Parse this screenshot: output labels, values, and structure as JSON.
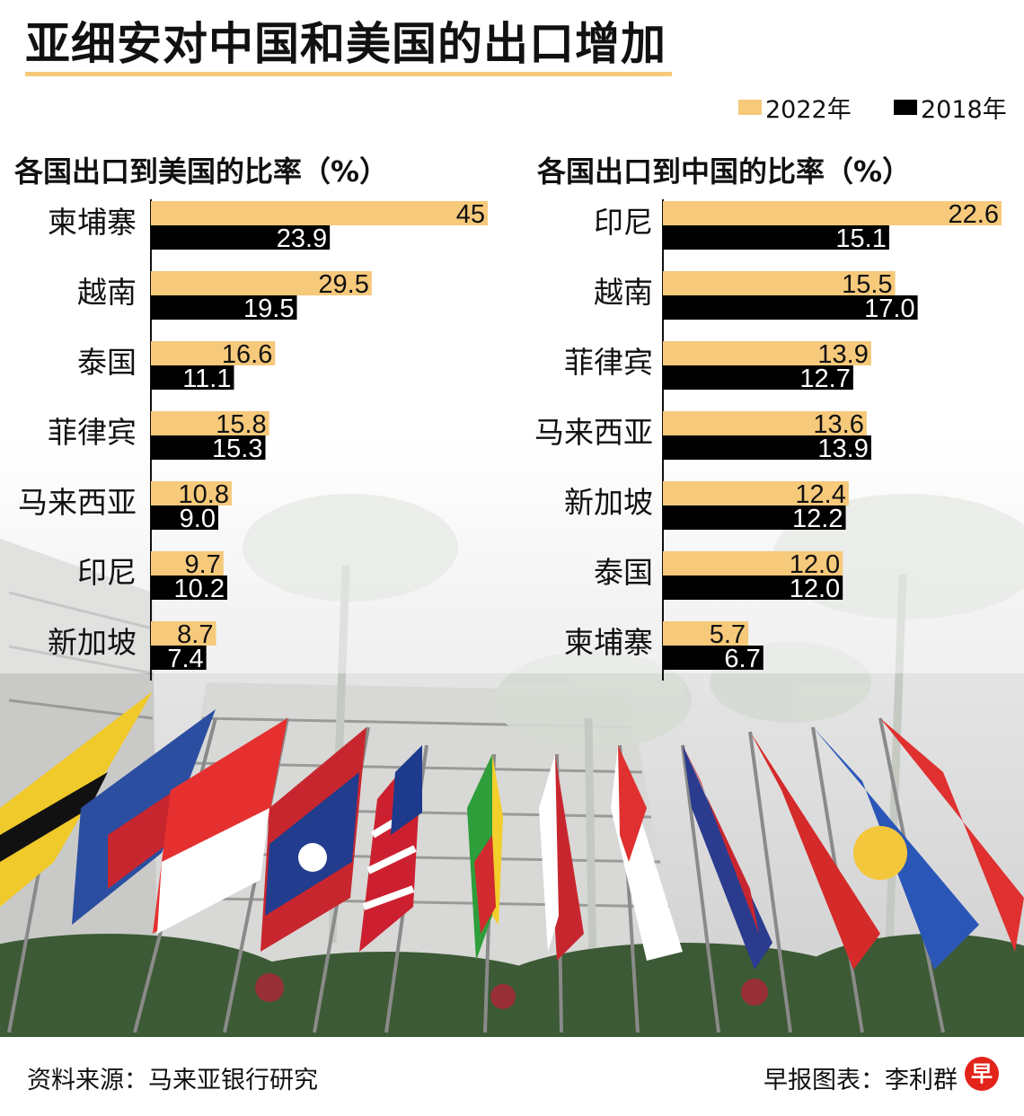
{
  "title": "亚细安对中国和美国的出口增加",
  "colors": {
    "y2022": "#f6c97b",
    "y2018": "#000000",
    "badge": "#e2231a"
  },
  "legend": [
    {
      "label": "2022年",
      "color": "#f6c97b"
    },
    {
      "label": "2018年",
      "color": "#000000"
    }
  ],
  "footer": {
    "source": "资料来源：马来亚银行研究",
    "credit": "早报图表：李利群",
    "badge_text": "早"
  },
  "chart_data": [
    {
      "type": "bar",
      "title": "各国出口到美国的比率（%）",
      "orientation": "horizontal",
      "categories": [
        "柬埔寨",
        "越南",
        "泰国",
        "菲律宾",
        "马来西亚",
        "印尼",
        "新加坡"
      ],
      "series": [
        {
          "name": "2022年",
          "values": [
            45,
            29.5,
            16.6,
            15.8,
            10.8,
            9.7,
            8.7
          ],
          "labels": [
            "45",
            "29.5",
            "16.6",
            "15.8",
            "10.8",
            "9.7",
            "8.7"
          ]
        },
        {
          "name": "2018年",
          "values": [
            23.9,
            19.5,
            11.1,
            15.3,
            9.0,
            10.2,
            7.4
          ],
          "labels": [
            "23.9",
            "19.5",
            "11.1",
            "15.3",
            "9.0",
            "10.2",
            "7.4"
          ]
        }
      ],
      "xlim": [
        0,
        45
      ]
    },
    {
      "type": "bar",
      "title": "各国出口到中国的比率（%）",
      "orientation": "horizontal",
      "categories": [
        "印尼",
        "越南",
        "菲律宾",
        "马来西亚",
        "新加坡",
        "泰国",
        "柬埔寨"
      ],
      "series": [
        {
          "name": "2022年",
          "values": [
            22.6,
            15.5,
            13.9,
            13.6,
            12.4,
            12.0,
            5.7
          ],
          "labels": [
            "22.6",
            "15.5",
            "13.9",
            "13.6",
            "12.4",
            "12.0",
            "5.7"
          ]
        },
        {
          "name": "2018年",
          "values": [
            15.1,
            17.0,
            12.7,
            13.9,
            12.2,
            12.0,
            6.7
          ],
          "labels": [
            "15.1",
            "17.0",
            "12.7",
            "13.9",
            "12.2",
            "12.0",
            "6.7"
          ]
        }
      ],
      "xlim": [
        0,
        22.6
      ]
    }
  ]
}
